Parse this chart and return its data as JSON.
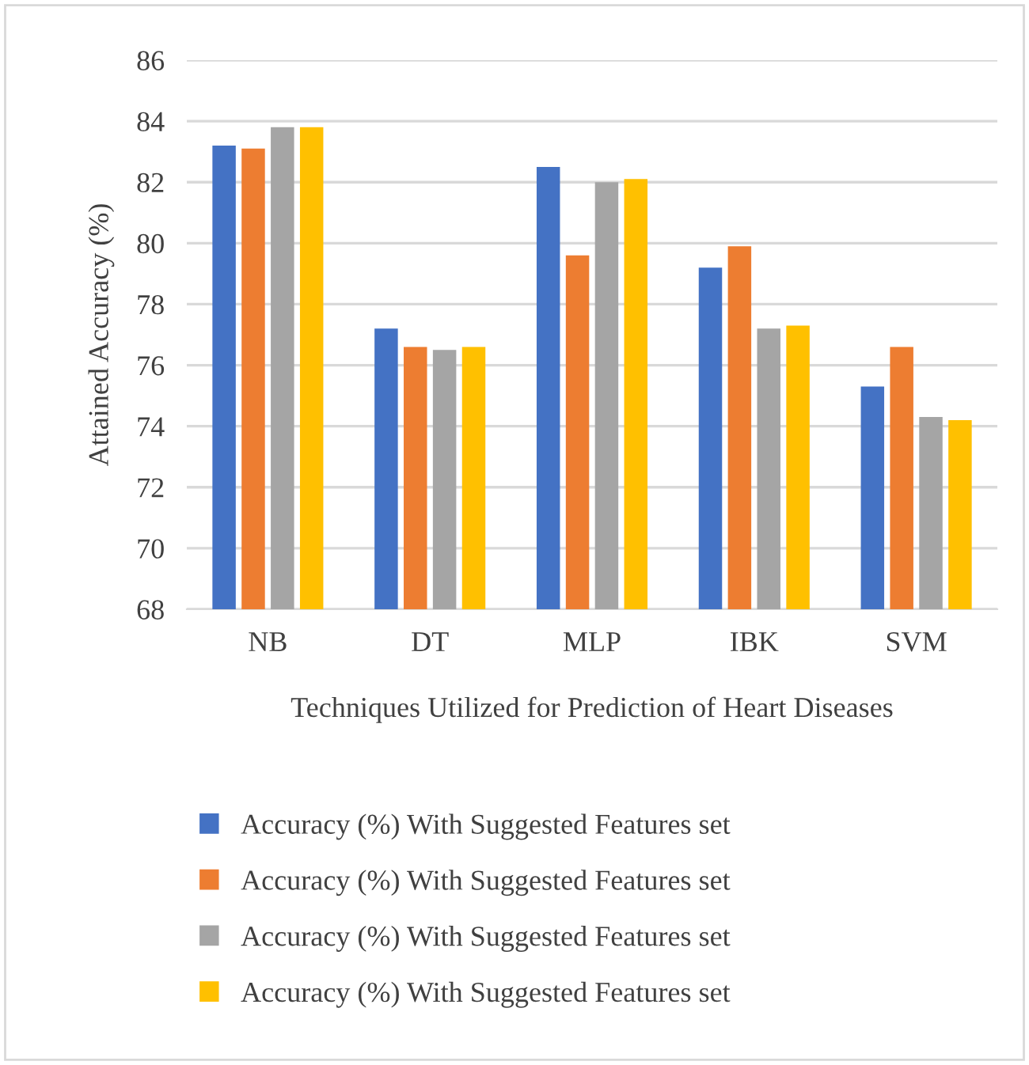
{
  "chart_data": {
    "type": "bar",
    "xlabel": "Techniques Utilized for Prediction of Heart Diseases",
    "ylabel": "Attained Accuracy (%)",
    "categories": [
      "NB",
      "DT",
      "MLP",
      "IBK",
      "SVM"
    ],
    "series": [
      {
        "name": "Accuracy (%) With Suggested Features set",
        "color": "#4472c4",
        "values": [
          83.2,
          77.2,
          82.5,
          79.2,
          75.3
        ]
      },
      {
        "name": "Accuracy (%) With Suggested Features set",
        "color": "#ed7d31",
        "values": [
          83.1,
          76.6,
          79.6,
          79.9,
          76.6
        ]
      },
      {
        "name": "Accuracy (%) With Suggested Features set",
        "color": "#a5a5a5",
        "values": [
          83.8,
          76.5,
          82.0,
          77.2,
          74.3
        ]
      },
      {
        "name": "Accuracy (%) With Suggested Features set",
        "color": "#ffc000",
        "values": [
          83.8,
          76.6,
          82.1,
          77.3,
          74.2
        ]
      }
    ],
    "ylim": [
      68,
      86
    ],
    "yticks": [
      68,
      70,
      72,
      74,
      76,
      78,
      80,
      82,
      84,
      86
    ],
    "grid": "y",
    "legend": "bottom"
  }
}
